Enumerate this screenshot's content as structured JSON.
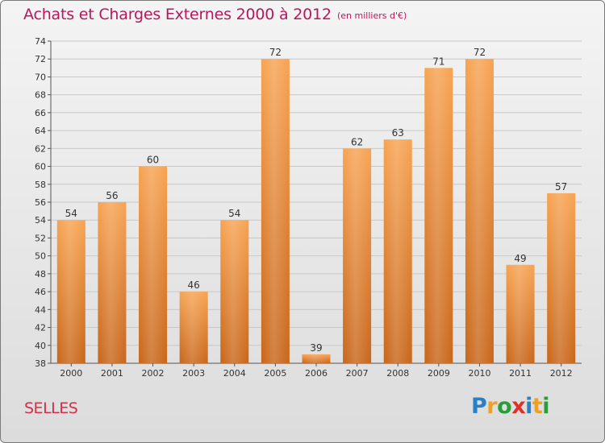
{
  "header": {
    "title": "Achats et Charges Externes 2000 à 2012",
    "subtitle": "(en milliers d'€)"
  },
  "footer": {
    "commune": "SELLES",
    "logo_letters": [
      {
        "ch": "P",
        "color": "#2a7fc9"
      },
      {
        "ch": "r",
        "color": "#f0a020"
      },
      {
        "ch": "o",
        "color": "#2a9c3a"
      },
      {
        "ch": "x",
        "color": "#e03028"
      },
      {
        "ch": "i",
        "color": "#2a7fc9"
      },
      {
        "ch": "t",
        "color": "#f0a020"
      },
      {
        "ch": "i",
        "color": "#2a9c3a"
      }
    ]
  },
  "colors": {
    "bar_top": "#f7a352",
    "bar_bottom": "#c8661a",
    "title": "#b5195b",
    "grid": "#c8c8c8"
  },
  "chart_data": {
    "type": "bar",
    "categories": [
      "2000",
      "2001",
      "2002",
      "2003",
      "2004",
      "2005",
      "2006",
      "2007",
      "2008",
      "2009",
      "2010",
      "2011",
      "2012"
    ],
    "values": [
      54,
      56,
      60,
      46,
      54,
      72,
      39,
      62,
      63,
      71,
      72,
      49,
      57
    ],
    "ylim": [
      38,
      74
    ],
    "yticks": [
      38,
      40,
      42,
      44,
      46,
      48,
      50,
      52,
      54,
      56,
      58,
      60,
      62,
      64,
      66,
      68,
      70,
      72,
      74
    ],
    "grid": true,
    "data_labels": true
  }
}
